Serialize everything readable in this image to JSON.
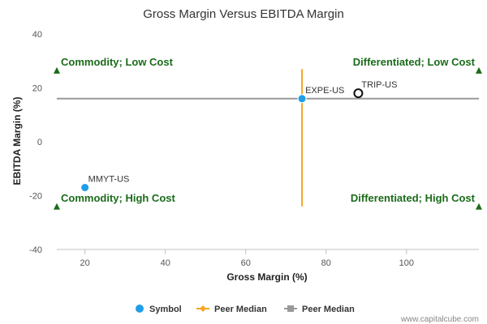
{
  "chart_data": {
    "type": "scatter",
    "title": "Gross Margin Versus EBITDA Margin",
    "xlabel": "Gross Margin (%)",
    "ylabel": "EBITDA Margin (%)",
    "xlim": [
      13,
      118
    ],
    "ylim": [
      -40,
      40
    ],
    "x_ticks": [
      "20",
      "40",
      "60",
      "80",
      "100"
    ],
    "x_tick_values": [
      20,
      40,
      60,
      80,
      100
    ],
    "y_ticks": [
      "40",
      "20",
      "0",
      "-20",
      "-40"
    ],
    "y_tick_values": [
      40,
      20,
      0,
      -20,
      -40
    ],
    "grid": false,
    "points": [
      {
        "label": "MMYT-US",
        "x": 20,
        "y": -17,
        "style": "filled",
        "color": "#1f9ee8"
      },
      {
        "label": "EXPE-US",
        "x": 74,
        "y": 16,
        "style": "filled",
        "color": "#1f9ee8"
      },
      {
        "label": "TRIP-US",
        "x": 88,
        "y": 18,
        "style": "hollow",
        "color": "#111111"
      }
    ],
    "peer_median_x": {
      "value": 74,
      "y_range": [
        -24,
        27
      ],
      "color": "#f5a623"
    },
    "peer_median_y": {
      "value": 16,
      "x_range": [
        13,
        118
      ],
      "color": "#999999"
    },
    "quadrants": [
      {
        "text": "Commodity; Low Cost",
        "x": 13,
        "y": 26.5,
        "anchor": "start"
      },
      {
        "text": "Differentiated; Low Cost",
        "x": 118,
        "y": 26.5,
        "anchor": "end"
      },
      {
        "text": "Commodity; High Cost",
        "x": 13,
        "y": -24,
        "anchor": "start"
      },
      {
        "text": "Differentiated; High Cost",
        "x": 118,
        "y": -24,
        "anchor": "end"
      }
    ],
    "quadrant_color": "#1a6b1a",
    "legend": {
      "placement": "bottom",
      "items": [
        {
          "name": "Symbol",
          "kind": "circle",
          "color": "#1f9ee8"
        },
        {
          "name": "Peer Median",
          "kind": "line-diamond",
          "color": "#f5a623"
        },
        {
          "name": "Peer Median",
          "kind": "line-square",
          "color": "#999999"
        }
      ]
    },
    "watermark": "www.capitalcube.com"
  }
}
